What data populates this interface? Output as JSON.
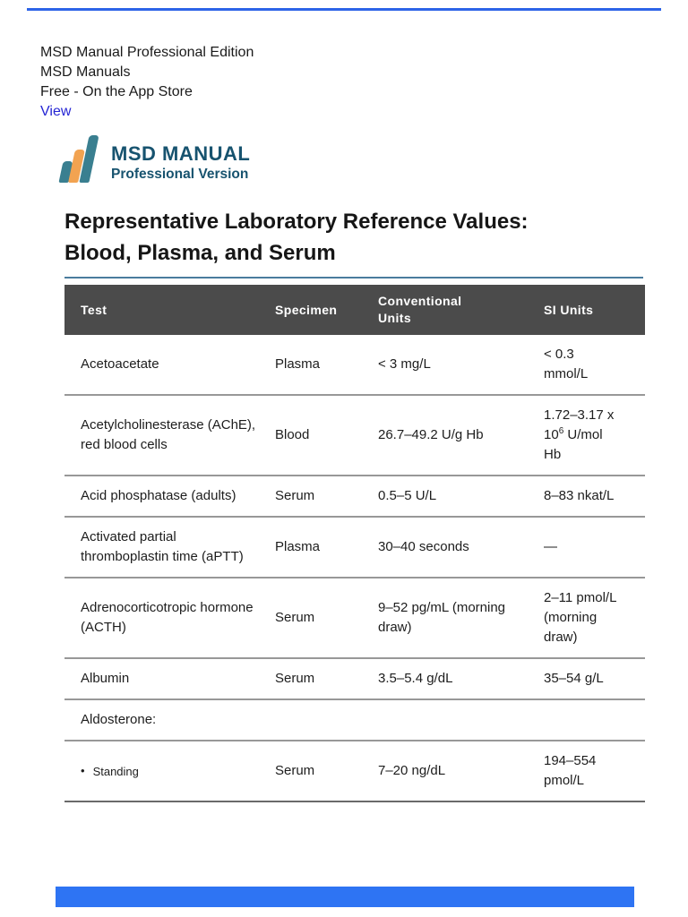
{
  "colors": {
    "accent_blue": "#2e74f3",
    "top_line_blue": "#2d64e8",
    "link_blue": "#2525d4",
    "brand_teal": "#3a7f90",
    "brand_orange": "#f2a351",
    "brand_text": "#17536f",
    "table_header_bg": "#4b4b4b",
    "title_underline": "#4a7c9d"
  },
  "app_banner": {
    "line1": "MSD Manual Professional Edition",
    "line2": "MSD Manuals",
    "line3": "Free - On the App Store",
    "link": "View"
  },
  "logo": {
    "name": "MSD MANUAL",
    "edition": "Professional Version"
  },
  "title": {
    "line1": "Representative Laboratory Reference Values:",
    "line2": "Blood, Plasma, and Serum"
  },
  "table": {
    "headers": [
      "Test",
      "Specimen",
      "Conventional Units",
      "SI Units"
    ],
    "rows": [
      {
        "test": "Acetoacetate",
        "specimen": "Plasma",
        "conventional": "< 3 mg/L",
        "si": "< 0.3 mmol/L"
      },
      {
        "test": "Acetylcholinesterase (AChE), red blood cells",
        "specimen": "Blood",
        "conventional": "26.7–49.2 U/g Hb",
        "si_before": "1.72–3.17 x 10",
        "si_sup": "6",
        "si_after": " U/mol Hb"
      },
      {
        "test": "Acid phosphatase (adults)",
        "specimen": "Serum",
        "conventional": "0.5–5 U/L",
        "si": "8–83 nkat/L"
      },
      {
        "test": "Activated partial thromboplastin time (aPTT)",
        "specimen": "Plasma",
        "conventional": "30–40 seconds",
        "si": "—"
      },
      {
        "test": "Adrenocorticotropic hormone (ACTH)",
        "specimen": "Serum",
        "conventional": "9–52 pg/mL (morning draw)",
        "si": "2–11 pmol/L (morning draw)"
      },
      {
        "test": "Albumin",
        "specimen": "Serum",
        "conventional": "3.5–5.4 g/dL",
        "si": "35–54 g/L"
      },
      {
        "test": "Aldosterone:",
        "specimen": "",
        "conventional": "",
        "si": ""
      },
      {
        "bullet": "•",
        "test": "Standing",
        "specimen": "Serum",
        "conventional": "7–20 ng/dL",
        "si": "194–554 pmol/L"
      }
    ]
  }
}
